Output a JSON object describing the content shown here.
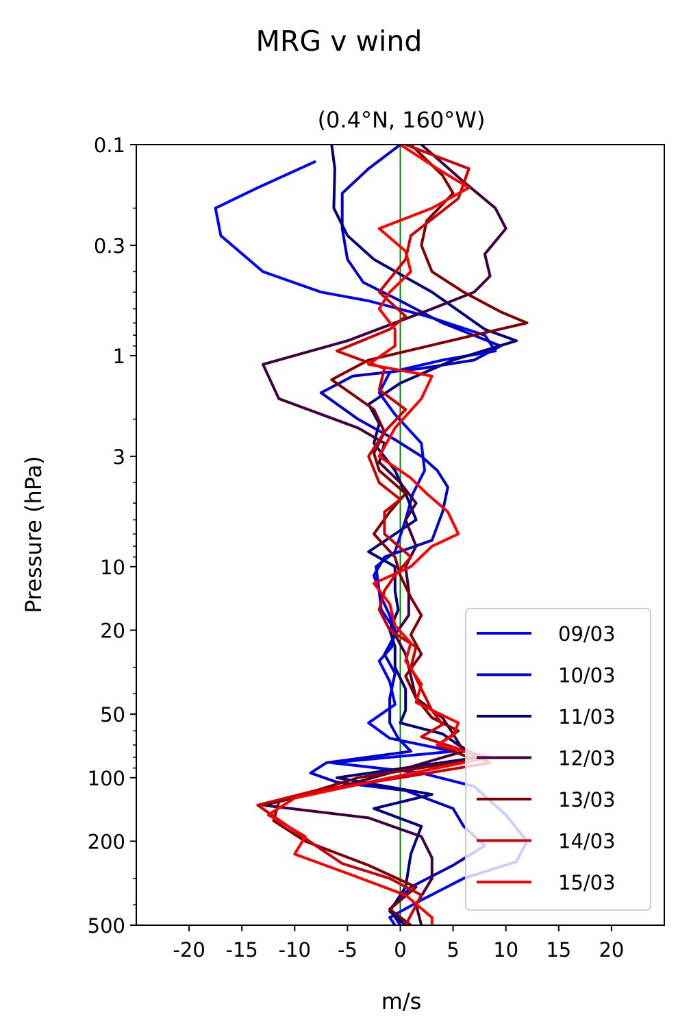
{
  "chart_data": {
    "type": "line",
    "title": "MRG v wind",
    "subtitle": "(0.4°N, 160°W)",
    "xlabel": "m/s",
    "ylabel": "Pressure (hPa)",
    "xlim": [
      -25,
      25
    ],
    "ylim": [
      500,
      0.1
    ],
    "yscale": "log",
    "grid": false,
    "legend_position": "lower-right",
    "x_ticks": [
      -20,
      -15,
      -10,
      -5,
      0,
      5,
      10,
      15,
      20
    ],
    "x_tick_labels": [
      "-20",
      "-15",
      "-10",
      "-5",
      "0",
      "5",
      "10",
      "15",
      "20"
    ],
    "y_ticks": [
      0.1,
      0.3,
      1,
      3,
      10,
      20,
      50,
      100,
      200,
      500
    ],
    "y_tick_labels": [
      "0.1",
      "0.3",
      "1",
      "3",
      "10",
      "20",
      "50",
      "100",
      "200",
      "500"
    ],
    "zero_line": {
      "x": 0,
      "color": "#008000"
    },
    "series": [
      {
        "name": "09/03",
        "color": "#0000ff",
        "points": [
          [
            -8,
            0.12
          ],
          [
            -13.5,
            0.16
          ],
          [
            -17.5,
            0.2
          ],
          [
            -17,
            0.27
          ],
          [
            -13,
            0.4
          ],
          [
            -7.5,
            0.5
          ],
          [
            -3,
            0.55
          ],
          [
            2.5,
            0.65
          ],
          [
            8,
            0.8
          ],
          [
            9,
            0.95
          ],
          [
            4,
            1.05
          ],
          [
            -1,
            1.2
          ],
          [
            -2,
            1.5
          ],
          [
            -0.5,
            1.9
          ],
          [
            2,
            2.6
          ],
          [
            2.3,
            3.5
          ],
          [
            1.2,
            4.5
          ],
          [
            0.5,
            6
          ],
          [
            -0.5,
            8.5
          ],
          [
            -2.3,
            10
          ],
          [
            -2,
            13
          ],
          [
            -1.8,
            16
          ],
          [
            -0.5,
            20
          ],
          [
            -0.8,
            24
          ],
          [
            -2,
            28
          ],
          [
            -1,
            35
          ],
          [
            -0.5,
            45
          ],
          [
            -3,
            55
          ],
          [
            -1,
            65
          ],
          [
            5,
            75
          ],
          [
            -6.5,
            85
          ],
          [
            2,
            95
          ],
          [
            7,
            110
          ],
          [
            10,
            150
          ],
          [
            12,
            200
          ],
          [
            11,
            250
          ],
          [
            6,
            300
          ],
          [
            2,
            380
          ],
          [
            -1,
            460
          ],
          [
            -0.5,
            500
          ]
        ]
      },
      {
        "name": "10/03",
        "color": "#0000cc",
        "points": [
          [
            0,
            0.1
          ],
          [
            -3,
            0.13
          ],
          [
            -5.5,
            0.17
          ],
          [
            -5.5,
            0.25
          ],
          [
            -5,
            0.35
          ],
          [
            -3.5,
            0.45
          ],
          [
            0,
            0.55
          ],
          [
            4,
            0.7
          ],
          [
            9.5,
            0.9
          ],
          [
            7,
            1.05
          ],
          [
            2,
            1.15
          ],
          [
            -4.5,
            1.25
          ],
          [
            -7.5,
            1.5
          ],
          [
            -4,
            2
          ],
          [
            -0.5,
            2.5
          ],
          [
            2,
            3
          ],
          [
            3.5,
            3.5
          ],
          [
            4.5,
            4.2
          ],
          [
            4,
            5.5
          ],
          [
            3,
            7.5
          ],
          [
            -1.5,
            9
          ],
          [
            -2.5,
            11
          ],
          [
            -1.8,
            14
          ],
          [
            -1,
            17
          ],
          [
            -0.5,
            21
          ],
          [
            -1.5,
            26
          ],
          [
            -0.5,
            32
          ],
          [
            -1,
            42
          ],
          [
            -1,
            55
          ],
          [
            -0.2,
            65
          ],
          [
            1,
            75
          ],
          [
            -7,
            85
          ],
          [
            -8.5,
            95
          ],
          [
            -6,
            105
          ],
          [
            0.5,
            115
          ],
          [
            5,
            140
          ],
          [
            6,
            170
          ],
          [
            8,
            210
          ],
          [
            5,
            260
          ],
          [
            1,
            330
          ],
          [
            -1,
            420
          ],
          [
            0,
            500
          ]
        ]
      },
      {
        "name": "11/03",
        "color": "#000080",
        "points": [
          [
            -6.5,
            0.1
          ],
          [
            -6.2,
            0.13
          ],
          [
            -6.3,
            0.2
          ],
          [
            -5,
            0.27
          ],
          [
            -2.5,
            0.35
          ],
          [
            3,
            0.5
          ],
          [
            8,
            0.75
          ],
          [
            11,
            0.85
          ],
          [
            5,
            1.05
          ],
          [
            0,
            1.35
          ],
          [
            -3,
            1.7
          ],
          [
            -2,
            2.1
          ],
          [
            -2.5,
            2.6
          ],
          [
            -0.5,
            3.5
          ],
          [
            0.5,
            4.5
          ],
          [
            1.5,
            6
          ],
          [
            -3,
            8.5
          ],
          [
            -0.5,
            10
          ],
          [
            -0.5,
            13
          ],
          [
            -0.2,
            16
          ],
          [
            -1,
            20
          ],
          [
            -0.5,
            24
          ],
          [
            -0.5,
            30
          ],
          [
            0.5,
            38
          ],
          [
            0.5,
            48
          ],
          [
            0,
            55
          ],
          [
            4,
            62
          ],
          [
            5.5,
            70
          ],
          [
            7.5,
            80
          ],
          [
            -6,
            100
          ],
          [
            3,
            120
          ],
          [
            -2.5,
            140
          ],
          [
            2,
            170
          ],
          [
            1,
            230
          ],
          [
            0.5,
            330
          ],
          [
            -1,
            430
          ],
          [
            0.5,
            500
          ]
        ]
      },
      {
        "name": "12/03",
        "color": "#400040",
        "points": [
          [
            2,
            0.1
          ],
          [
            6,
            0.15
          ],
          [
            9,
            0.2
          ],
          [
            10,
            0.25
          ],
          [
            8,
            0.33
          ],
          [
            8.5,
            0.42
          ],
          [
            7,
            0.5
          ],
          [
            3,
            0.6
          ],
          [
            -5,
            0.85
          ],
          [
            -13,
            1.1
          ],
          [
            -11.5,
            1.6
          ],
          [
            -4,
            2.2
          ],
          [
            -1.5,
            2.6
          ],
          [
            -2,
            3.2
          ],
          [
            0,
            4
          ],
          [
            1.5,
            5
          ],
          [
            0.5,
            6
          ],
          [
            1.5,
            8
          ],
          [
            0.5,
            10
          ],
          [
            0.8,
            13
          ],
          [
            0.8,
            17
          ],
          [
            -0.5,
            21
          ],
          [
            0.5,
            26
          ],
          [
            1,
            33
          ],
          [
            1.5,
            42
          ],
          [
            4,
            52
          ],
          [
            5,
            62
          ],
          [
            6,
            75
          ],
          [
            -1,
            95
          ],
          [
            -7,
            115
          ],
          [
            -13,
            135
          ],
          [
            -3,
            155
          ],
          [
            2,
            190
          ],
          [
            3,
            240
          ],
          [
            3,
            300
          ],
          [
            1.5,
            400
          ],
          [
            2,
            500
          ]
        ]
      },
      {
        "name": "13/03",
        "color": "#800000",
        "points": [
          [
            1,
            0.1
          ],
          [
            4,
            0.14
          ],
          [
            5,
            0.17
          ],
          [
            2.5,
            0.23
          ],
          [
            2,
            0.3
          ],
          [
            3,
            0.4
          ],
          [
            6,
            0.5
          ],
          [
            9.5,
            0.62
          ],
          [
            12,
            0.7
          ],
          [
            7,
            0.8
          ],
          [
            -3,
            1.05
          ],
          [
            -6.5,
            1.3
          ],
          [
            -2.5,
            1.8
          ],
          [
            -1.5,
            2.3
          ],
          [
            -2.5,
            2.9
          ],
          [
            -2,
            3.5
          ],
          [
            0.5,
            4.5
          ],
          [
            -1,
            5.5
          ],
          [
            -2.5,
            7
          ],
          [
            -0.5,
            9
          ],
          [
            0,
            11
          ],
          [
            1,
            14
          ],
          [
            2,
            17
          ],
          [
            1,
            21
          ],
          [
            2,
            26
          ],
          [
            0.5,
            33
          ],
          [
            1.5,
            42
          ],
          [
            3,
            52
          ],
          [
            5.5,
            60
          ],
          [
            3.5,
            70
          ],
          [
            7,
            82
          ],
          [
            -4,
            100
          ],
          [
            -11.5,
            130
          ],
          [
            -12,
            160
          ],
          [
            -9,
            200
          ],
          [
            -3,
            260
          ],
          [
            1.5,
            330
          ],
          [
            -1,
            420
          ],
          [
            1,
            500
          ]
        ]
      },
      {
        "name": "14/03",
        "color": "#cc0000",
        "points": [
          [
            0.5,
            0.1
          ],
          [
            6.5,
            0.13
          ],
          [
            5.5,
            0.18
          ],
          [
            1,
            0.27
          ],
          [
            0.5,
            0.35
          ],
          [
            -2,
            0.5
          ],
          [
            0.5,
            0.65
          ],
          [
            -1,
            0.75
          ],
          [
            -6,
            0.95
          ],
          [
            -1.5,
            1.15
          ],
          [
            -2,
            1.45
          ],
          [
            0.5,
            1.8
          ],
          [
            -1.5,
            2.3
          ],
          [
            -3,
            3
          ],
          [
            -2,
            4
          ],
          [
            0,
            4.8
          ],
          [
            -1.5,
            5.5
          ],
          [
            -1.5,
            7
          ],
          [
            1,
            9
          ],
          [
            -0.5,
            11
          ],
          [
            -1.5,
            13
          ],
          [
            -2,
            16
          ],
          [
            -1,
            20
          ],
          [
            1.5,
            24
          ],
          [
            1,
            30
          ],
          [
            2,
            38
          ],
          [
            3,
            48
          ],
          [
            4,
            56
          ],
          [
            2,
            64
          ],
          [
            5.5,
            73
          ],
          [
            8.5,
            85
          ],
          [
            0,
            100
          ],
          [
            -8,
            115
          ],
          [
            -13.5,
            135
          ],
          [
            -11,
            165
          ],
          [
            -8,
            210
          ],
          [
            -5.5,
            255
          ],
          [
            -1,
            300
          ],
          [
            2,
            360
          ],
          [
            0.5,
            500
          ]
        ]
      },
      {
        "name": "15/03",
        "color": "#ff0000",
        "points": [
          [
            0,
            0.1
          ],
          [
            3.5,
            0.13
          ],
          [
            6.5,
            0.16
          ],
          [
            3,
            0.2
          ],
          [
            -2,
            0.25
          ],
          [
            0.5,
            0.32
          ],
          [
            1,
            0.4
          ],
          [
            -1,
            0.5
          ],
          [
            -2,
            0.6
          ],
          [
            -0.5,
            0.75
          ],
          [
            -0.5,
            0.9
          ],
          [
            -3,
            1.1
          ],
          [
            3,
            1.25
          ],
          [
            2,
            1.6
          ],
          [
            -0.5,
            2.2
          ],
          [
            -2,
            3
          ],
          [
            1,
            3.8
          ],
          [
            2.5,
            4.5
          ],
          [
            4.5,
            5.5
          ],
          [
            5.5,
            7
          ],
          [
            3,
            8
          ],
          [
            1,
            10
          ],
          [
            -2.5,
            12
          ],
          [
            -1,
            15
          ],
          [
            -0.5,
            19
          ],
          [
            1,
            23
          ],
          [
            0.5,
            28
          ],
          [
            2,
            36
          ],
          [
            1.5,
            44
          ],
          [
            5.5,
            55
          ],
          [
            5,
            63
          ],
          [
            3.5,
            70
          ],
          [
            8.5,
            80
          ],
          [
            -1,
            100
          ],
          [
            -10,
            125
          ],
          [
            -12.5,
            150
          ],
          [
            -9,
            190
          ],
          [
            -10,
            230
          ],
          [
            -4.5,
            290
          ],
          [
            0.5,
            360
          ],
          [
            3,
            460
          ],
          [
            3,
            500
          ]
        ]
      }
    ]
  }
}
